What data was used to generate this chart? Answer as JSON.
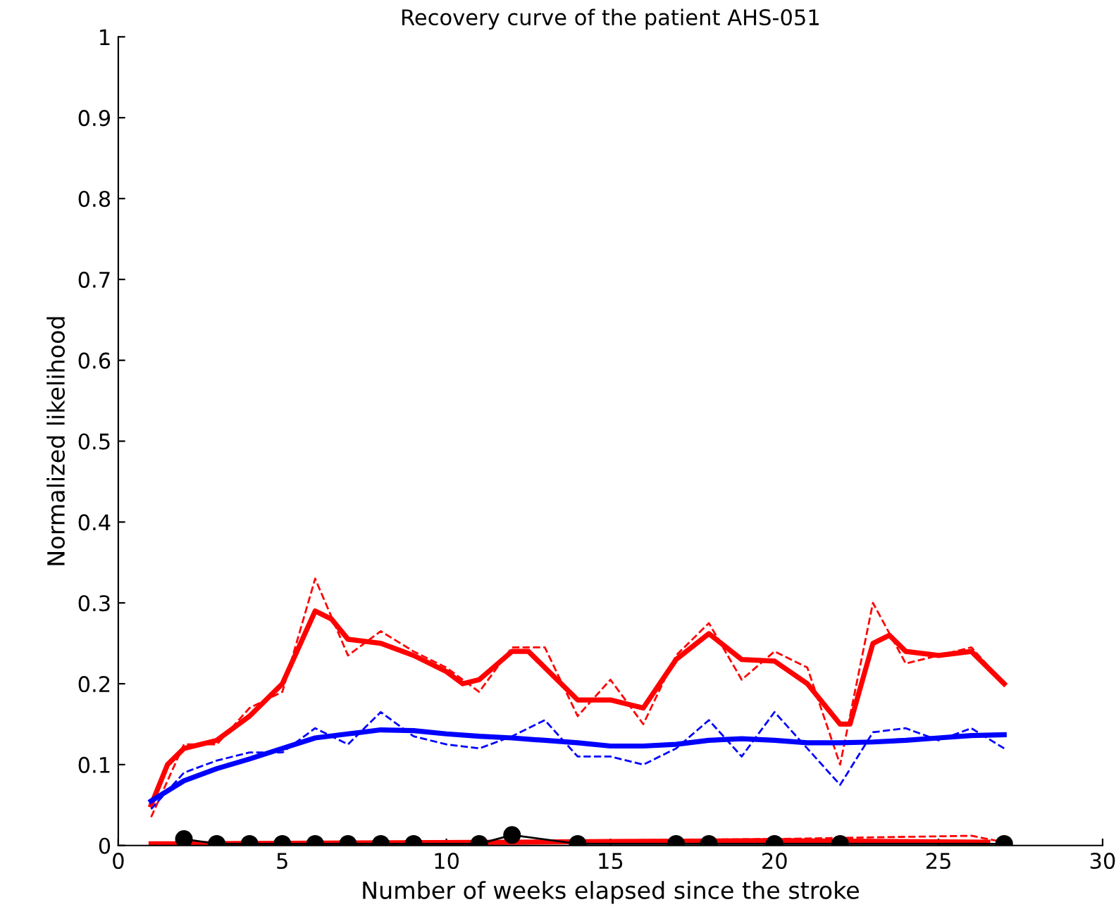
{
  "chart_data": {
    "type": "line",
    "title": "Recovery curve of the patient AHS-051",
    "xlabel": "Number of weeks elapsed since the stroke",
    "ylabel": "Normalized likelihood",
    "xlim": [
      0,
      30
    ],
    "xticks": [
      0,
      5,
      10,
      15,
      20,
      25,
      30
    ],
    "ylim": [
      0,
      1
    ],
    "yticks": [
      0,
      0.1,
      0.2,
      0.3,
      0.4,
      0.5,
      0.6,
      0.7,
      0.8,
      0.9,
      1
    ],
    "grid": false,
    "legend": false,
    "series": [
      {
        "color": "#ff0000",
        "line_style": "dashed",
        "marker": "none",
        "x": [
          1,
          2,
          3,
          4,
          5,
          6,
          7,
          8,
          9,
          10,
          11,
          12,
          13,
          14,
          15,
          16,
          17,
          18,
          19,
          20,
          21,
          22,
          23,
          24,
          25,
          26,
          27
        ],
        "values": [
          0.035,
          0.125,
          0.125,
          0.17,
          0.19,
          0.33,
          0.235,
          0.265,
          0.24,
          0.22,
          0.19,
          0.245,
          0.245,
          0.16,
          0.205,
          0.15,
          0.235,
          0.275,
          0.205,
          0.24,
          0.22,
          0.1,
          0.3,
          0.225,
          0.235,
          0.245,
          0.2
        ]
      },
      {
        "color": "#ff0000",
        "line_style": "solid",
        "marker": "none",
        "x": [
          1,
          1.5,
          2,
          3,
          4,
          5,
          6,
          6.5,
          7,
          8,
          9,
          10,
          10.5,
          11,
          12,
          12.5,
          13,
          14,
          15,
          16,
          17,
          18,
          19,
          20,
          21,
          22,
          22.3,
          23,
          23.5,
          24,
          25,
          26,
          27
        ],
        "values": [
          0.05,
          0.1,
          0.12,
          0.13,
          0.16,
          0.2,
          0.29,
          0.28,
          0.255,
          0.25,
          0.235,
          0.215,
          0.2,
          0.205,
          0.24,
          0.24,
          0.22,
          0.18,
          0.18,
          0.17,
          0.23,
          0.262,
          0.23,
          0.228,
          0.2,
          0.15,
          0.15,
          0.25,
          0.26,
          0.24,
          0.235,
          0.24,
          0.2
        ]
      },
      {
        "color": "#0000ff",
        "line_style": "dashed",
        "marker": "none",
        "x": [
          1,
          2,
          3,
          4,
          5,
          6,
          7,
          8,
          9,
          10,
          11,
          12,
          13,
          14,
          15,
          16,
          17,
          18,
          19,
          20,
          21,
          22,
          23,
          24,
          25,
          26,
          27
        ],
        "values": [
          0.045,
          0.09,
          0.105,
          0.115,
          0.115,
          0.145,
          0.125,
          0.165,
          0.135,
          0.125,
          0.12,
          0.135,
          0.155,
          0.11,
          0.11,
          0.1,
          0.12,
          0.155,
          0.11,
          0.165,
          0.12,
          0.075,
          0.14,
          0.145,
          0.13,
          0.145,
          0.12
        ]
      },
      {
        "color": "#0000ff",
        "line_style": "solid",
        "marker": "none",
        "x": [
          1,
          2,
          3,
          4,
          5,
          6,
          7,
          8,
          9,
          10,
          11,
          12,
          13,
          14,
          15,
          16,
          17,
          18,
          19,
          20,
          21,
          22,
          23,
          24,
          25,
          26,
          27
        ],
        "values": [
          0.055,
          0.08,
          0.095,
          0.107,
          0.12,
          0.133,
          0.138,
          0.143,
          0.142,
          0.138,
          0.135,
          0.133,
          0.13,
          0.127,
          0.123,
          0.123,
          0.125,
          0.13,
          0.132,
          0.13,
          0.127,
          0.127,
          0.128,
          0.13,
          0.133,
          0.136,
          0.137
        ]
      },
      {
        "color": "#ff0000",
        "line_style": "dashed",
        "marker": "none",
        "x": [
          1,
          12,
          20,
          26,
          27
        ],
        "values": [
          0,
          0.005,
          0.008,
          0.012,
          0.004
        ]
      },
      {
        "color": "#ff0000",
        "line_style": "solid",
        "marker": "none",
        "x": [
          1,
          12,
          15,
          20,
          26.5
        ],
        "values": [
          0.002,
          0.004,
          0.005,
          0.006,
          0.004
        ]
      },
      {
        "color": "#000000",
        "line_style": "solid",
        "marker": "circle",
        "x": [
          2,
          3,
          4,
          5,
          6,
          7,
          8,
          9,
          11,
          12,
          14,
          17,
          18,
          20,
          22,
          27
        ],
        "values": [
          0.008,
          0.002,
          0.002,
          0.002,
          0.002,
          0.002,
          0.002,
          0.002,
          0.002,
          0.013,
          0.002,
          0.002,
          0.002,
          0.002,
          0.002,
          0.002
        ]
      }
    ]
  }
}
